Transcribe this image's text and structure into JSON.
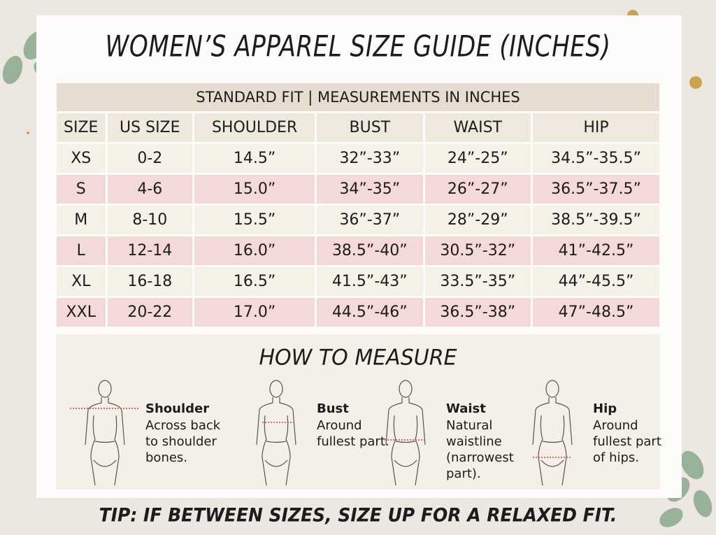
{
  "title": "WOMEN’S APPAREL SIZE GUIDE (INCHES)",
  "table": {
    "caption": "STANDARD FIT | MEASUREMENTS IN INCHES",
    "header": [
      "SIZE",
      "US SIZE",
      "SHOULDER",
      "BUST",
      "WAIST",
      "HIP"
    ],
    "rows": [
      [
        "XS",
        "0-2",
        "14.5”",
        "32”-33”",
        "24”-25”",
        "34.5”-35.5”"
      ],
      [
        "S",
        "4-6",
        "15.0”",
        "34”-35”",
        "26”-27”",
        "36.5”-37.5”"
      ],
      [
        "M",
        "8-10",
        "15.5”",
        "36”-37”",
        "28”-29”",
        "38.5”-39.5”"
      ],
      [
        "L",
        "12-14",
        "16.0”",
        "38.5”-40”",
        "30.5”-32”",
        "41”-42.5”"
      ],
      [
        "XL",
        "16-18",
        "16.5”",
        "41.5”-43”",
        "33.5”-35”",
        "44”-45.5”"
      ],
      [
        "XXL",
        "20-22",
        "17.0”",
        "44.5”-46”",
        "36.5”-38”",
        "47”-48.5”"
      ]
    ]
  },
  "how_to_measure": {
    "title": "HOW TO MEASURE",
    "items": [
      {
        "label": "Shoulder",
        "text": "Across back to shoulder bones."
      },
      {
        "label": "Bust",
        "text": "Around fullest part."
      },
      {
        "label": "Waist",
        "text": "Natural waistline (narrowest part)."
      },
      {
        "label": "Hip",
        "text": "Around fullest part of hips."
      }
    ]
  },
  "tip": "TIP: IF BETWEEN SIZES, SIZE UP FOR A RELAXED FIT."
}
